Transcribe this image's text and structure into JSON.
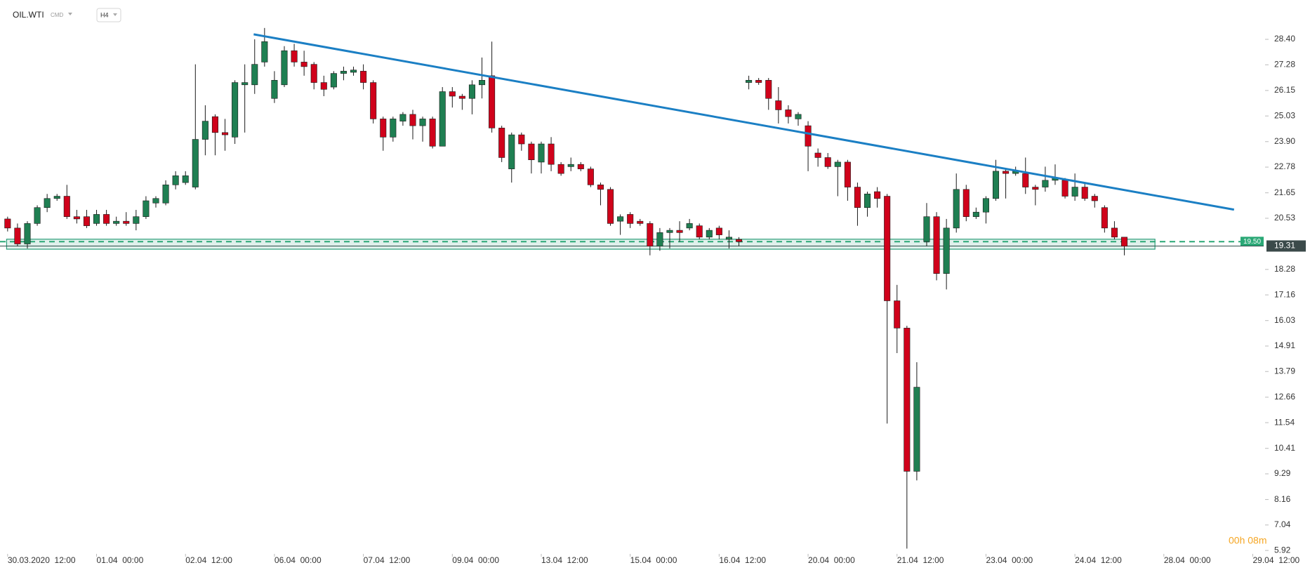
{
  "chart_data": {
    "type": "candlestick",
    "symbol": "OIL.WTI",
    "market": "CMD",
    "timeframe": "H4",
    "countdown": "00h 08m",
    "up_color": "#1f7f52",
    "down_color": "#d0021b",
    "wick_color": "#1a1a1a",
    "open": [
      20.5,
      20.1,
      19.4,
      20.3,
      21.0,
      21.4,
      21.5,
      20.6,
      20.6,
      20.3,
      20.7,
      20.3,
      20.4,
      20.3,
      20.6,
      21.2,
      21.2,
      22.0,
      22.1,
      21.9,
      24.0,
      25.0,
      24.3,
      24.1,
      26.4,
      26.4,
      27.4,
      25.8,
      26.4,
      27.9,
      27.4,
      27.3,
      26.5,
      26.3,
      26.9,
      26.95,
      27.0,
      26.5,
      24.9,
      24.1,
      24.8,
      25.1,
      24.6,
      24.9,
      23.7,
      26.1,
      25.9,
      25.8,
      26.4,
      26.8,
      24.5,
      22.7,
      24.2,
      23.8,
      23.0,
      23.8,
      22.9,
      22.8,
      22.9,
      22.7,
      22.0,
      21.8,
      20.4,
      20.7,
      20.4,
      20.3,
      19.3,
      19.9,
      20.0,
      20.1,
      20.2,
      19.7,
      20.1,
      19.6,
      19.6,
      26.5,
      26.6,
      26.6,
      25.7,
      25.3,
      24.9,
      24.6,
      23.4,
      23.2,
      22.8,
      23.0,
      21.9,
      21.0,
      21.7,
      21.5,
      16.9,
      15.7,
      9.4,
      19.5,
      20.6,
      18.1,
      20.1,
      21.8,
      20.6,
      20.8,
      21.4,
      22.6,
      22.5,
      22.5,
      21.9,
      21.9,
      22.2,
      22.2,
      21.5,
      21.9,
      21.5,
      21.0,
      20.1,
      19.7
    ],
    "high": [
      20.6,
      20.3,
      20.4,
      21.1,
      21.6,
      21.6,
      22.0,
      20.9,
      20.9,
      20.9,
      20.9,
      20.6,
      20.8,
      20.9,
      21.5,
      21.5,
      22.2,
      22.6,
      22.6,
      27.3,
      25.5,
      25.1,
      24.9,
      26.6,
      27.3,
      28.4,
      28.9,
      27.0,
      28.1,
      28.2,
      27.9,
      27.4,
      26.8,
      27.0,
      27.2,
      27.2,
      27.3,
      26.6,
      25.0,
      25.0,
      25.2,
      25.3,
      25.0,
      25.0,
      26.3,
      26.3,
      26.0,
      26.6,
      27.6,
      28.3,
      24.6,
      24.3,
      24.3,
      23.9,
      23.9,
      24.1,
      23.0,
      23.2,
      23.0,
      22.8,
      22.1,
      21.9,
      20.7,
      20.8,
      20.5,
      20.4,
      20.1,
      20.1,
      20.4,
      20.5,
      20.3,
      20.1,
      20.2,
      20.0,
      19.7,
      26.8,
      26.7,
      26.7,
      26.3,
      25.5,
      25.2,
      24.8,
      23.6,
      23.4,
      23.1,
      23.1,
      22.1,
      21.7,
      21.9,
      21.6,
      17.6,
      15.8,
      14.2,
      21.2,
      20.8,
      20.5,
      22.5,
      22.0,
      21.0,
      21.5,
      23.1,
      22.7,
      22.8,
      23.2,
      22.0,
      22.8,
      22.9,
      22.3,
      22.5,
      22.1,
      21.6,
      21.1,
      20.4,
      19.7
    ],
    "low": [
      19.95,
      19.3,
      19.2,
      20.2,
      20.8,
      21.3,
      20.5,
      20.3,
      20.1,
      20.2,
      20.2,
      20.2,
      20.2,
      20.0,
      20.5,
      21.0,
      21.1,
      21.8,
      22.0,
      21.8,
      23.3,
      23.3,
      23.5,
      23.8,
      24.3,
      26.0,
      27.2,
      25.6,
      26.3,
      27.2,
      26.8,
      26.2,
      25.9,
      26.2,
      26.6,
      26.8,
      26.2,
      24.7,
      23.5,
      23.9,
      24.6,
      24.0,
      23.9,
      23.6,
      23.7,
      25.4,
      25.3,
      25.1,
      25.8,
      24.3,
      23.0,
      22.1,
      23.5,
      22.5,
      22.5,
      22.6,
      22.4,
      22.6,
      22.6,
      21.9,
      21.1,
      20.2,
      19.8,
      20.1,
      20.2,
      18.9,
      19.1,
      19.2,
      19.5,
      20.0,
      19.6,
      19.6,
      19.6,
      19.2,
      19.3,
      26.2,
      26.4,
      25.3,
      24.7,
      24.7,
      24.6,
      22.6,
      22.8,
      22.7,
      21.5,
      21.3,
      20.2,
      20.6,
      21.0,
      11.5,
      14.6,
      6.0,
      9.0,
      19.3,
      17.8,
      17.4,
      19.9,
      20.4,
      20.5,
      20.3,
      21.3,
      21.4,
      22.4,
      21.6,
      21.1,
      21.7,
      22.0,
      21.4,
      21.3,
      21.3,
      21.0,
      19.9,
      19.6,
      18.9
    ],
    "close": [
      20.1,
      19.4,
      20.3,
      21.0,
      21.4,
      21.5,
      20.6,
      20.5,
      20.2,
      20.7,
      20.3,
      20.4,
      20.3,
      20.6,
      21.3,
      21.4,
      22.0,
      22.4,
      22.4,
      24.0,
      24.8,
      24.3,
      24.2,
      26.5,
      26.5,
      27.3,
      28.3,
      26.6,
      27.9,
      27.4,
      27.2,
      26.5,
      26.2,
      26.9,
      27.0,
      27.05,
      26.5,
      24.9,
      24.1,
      24.9,
      25.1,
      24.6,
      24.9,
      23.7,
      26.1,
      25.9,
      25.8,
      26.4,
      26.6,
      24.5,
      23.2,
      24.2,
      23.8,
      23.1,
      23.8,
      22.9,
      22.5,
      22.9,
      22.7,
      22.0,
      21.8,
      20.3,
      20.6,
      20.3,
      20.3,
      19.3,
      19.9,
      20.0,
      19.9,
      20.3,
      19.7,
      20.0,
      19.8,
      19.7,
      19.5,
      26.6,
      26.5,
      25.8,
      25.3,
      25.0,
      25.1,
      23.7,
      23.2,
      22.8,
      23.0,
      21.9,
      21.0,
      21.6,
      21.4,
      16.9,
      15.7,
      9.4,
      13.1,
      20.6,
      18.1,
      20.1,
      21.8,
      20.6,
      20.8,
      21.4,
      22.6,
      22.5,
      22.6,
      21.9,
      21.8,
      22.2,
      22.3,
      21.5,
      21.9,
      21.4,
      21.3,
      20.1,
      19.7,
      19.3
    ],
    "xlim": [
      -0.77,
      127.1
    ],
    "xticks": [
      {
        "value": 0,
        "label": "30.03.2020  12:00"
      },
      {
        "value": 9,
        "label": "01.04  00:00"
      },
      {
        "value": 18,
        "label": "02.04  12:00"
      },
      {
        "value": 27,
        "label": "06.04  00:00"
      },
      {
        "value": 36,
        "label": "07.04  12:00"
      },
      {
        "value": 45,
        "label": "09.04  00:00"
      },
      {
        "value": 54,
        "label": "13.04  12:00"
      },
      {
        "value": 63,
        "label": "15.04  00:00"
      },
      {
        "value": 72,
        "label": "16.04  12:00"
      },
      {
        "value": 81,
        "label": "20.04  00:00"
      },
      {
        "value": 90,
        "label": "21.04  12:00"
      },
      {
        "value": 99,
        "label": "23.04  00:00"
      },
      {
        "value": 108,
        "label": "24.04  12:00"
      },
      {
        "value": 117,
        "label": "28.04  00:00"
      },
      {
        "value": 126,
        "label": "29.04  12:00"
      }
    ],
    "ylim": [
      5.77,
      30.13
    ],
    "yticks": [
      {
        "value": 28.4,
        "label": "28.40"
      },
      27.28,
      26.15,
      25.03,
      {
        "value": 23.9,
        "label": "23.90"
      },
      22.78,
      21.65,
      20.53,
      18.28,
      17.16,
      16.03,
      14.91,
      13.79,
      12.66,
      11.54,
      10.41,
      9.29,
      8.16,
      7.04,
      5.92
    ],
    "trendlines": [
      {
        "x": [
          24.9,
          124.1
        ],
        "y": [
          28.62,
          20.91
        ],
        "color": "#1b7fc4"
      }
    ],
    "zones": [
      {
        "x": [
          -0.1,
          116.1
        ],
        "y": [
          19.17,
          19.61
        ],
        "color": "#2a9d78"
      }
    ],
    "levels": [
      {
        "value": 19.5,
        "label": "19.50",
        "style": "dashed",
        "color": "#2aa876"
      },
      {
        "value": 19.31,
        "label": "19.31",
        "style": "solid",
        "color": "#2f4f4a"
      }
    ]
  }
}
